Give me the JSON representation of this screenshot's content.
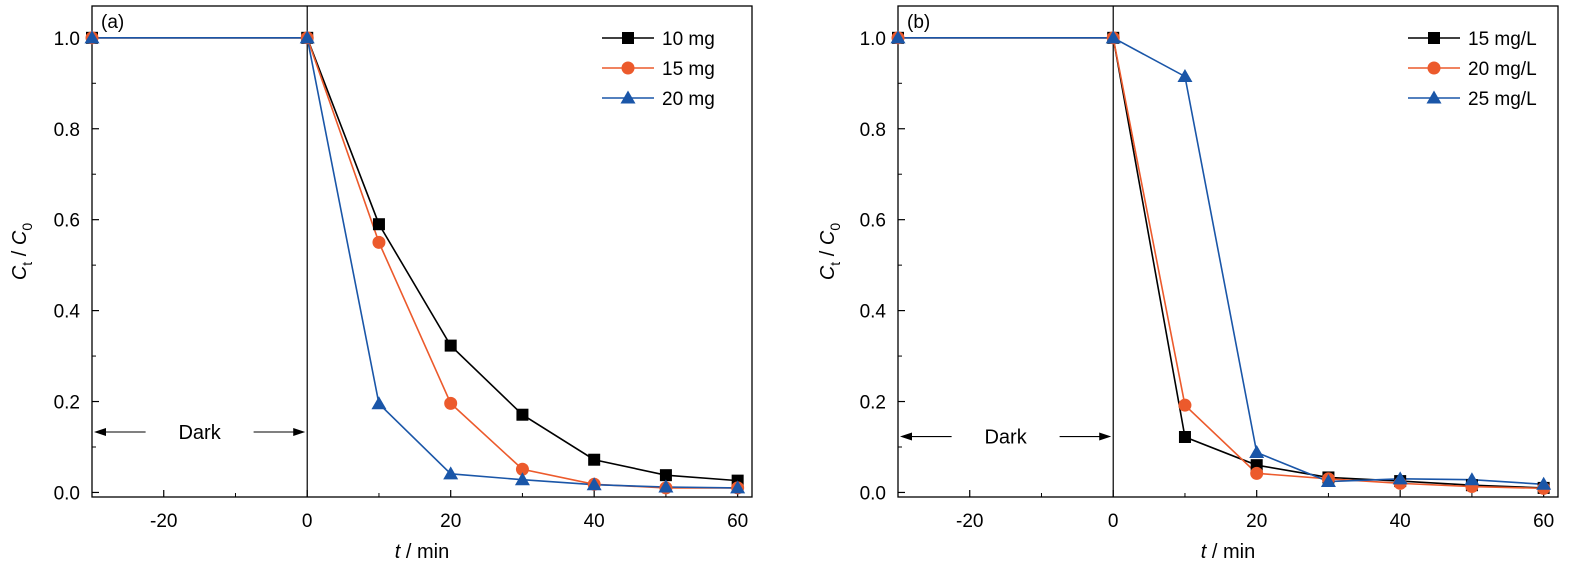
{
  "chart_data": [
    {
      "type": "line",
      "panel_label": "(a)",
      "xlabel": {
        "var": "t",
        "unit": " / min"
      },
      "ylabel": {
        "main": "C",
        "num_sub": "t",
        "sep": " / ",
        "den": "C",
        "den_sub": "0"
      },
      "xlim": [
        -30,
        62
      ],
      "ylim": [
        -0.01,
        1.07
      ],
      "xticks": [
        -20,
        0,
        20,
        40,
        60
      ],
      "xtick_labels": [
        "-20",
        "0",
        "20",
        "40",
        "60"
      ],
      "yticks": [
        0.0,
        0.2,
        0.4,
        0.6,
        0.8,
        1.0
      ],
      "ytick_labels": [
        "0.0",
        "0.2",
        "0.4",
        "0.6",
        "0.8",
        "1.0"
      ],
      "vline_x": 0,
      "dark_annotation": {
        "text": "Dark",
        "x_from": -30,
        "x_to": 0,
        "y": 0.133
      },
      "legend_position": "top-right",
      "x": [
        -30,
        0,
        10,
        20,
        30,
        40,
        50,
        60
      ],
      "series": [
        {
          "name": "10 mg",
          "color": "#000000",
          "marker": "square",
          "values": [
            1.0,
            1.0,
            0.59,
            0.323,
            0.171,
            0.072,
            0.038,
            0.026
          ]
        },
        {
          "name": "15 mg",
          "color": "#ec5a2c",
          "marker": "circle",
          "values": [
            1.0,
            1.0,
            0.55,
            0.196,
            0.051,
            0.018,
            0.01,
            0.01
          ]
        },
        {
          "name": "20 mg",
          "color": "#1a56a8",
          "marker": "triangle",
          "values": [
            1.0,
            1.0,
            0.195,
            0.041,
            0.028,
            0.017,
            0.012,
            0.01
          ]
        }
      ]
    },
    {
      "type": "line",
      "panel_label": "(b)",
      "xlabel": {
        "var": "t",
        "unit": " / min"
      },
      "ylabel": {
        "main": "C",
        "num_sub": "t",
        "sep": " / ",
        "den": "C",
        "den_sub": "0"
      },
      "xlim": [
        -30,
        62
      ],
      "ylim": [
        -0.01,
        1.07
      ],
      "xticks": [
        -20,
        0,
        20,
        40,
        60
      ],
      "xtick_labels": [
        "-20",
        "0",
        "20",
        "40",
        "60"
      ],
      "yticks": [
        0.0,
        0.2,
        0.4,
        0.6,
        0.8,
        1.0
      ],
      "ytick_labels": [
        "0.0",
        "0.2",
        "0.4",
        "0.6",
        "0.8",
        "1.0"
      ],
      "vline_x": 0,
      "dark_annotation": {
        "text": "Dark",
        "x_from": -30,
        "x_to": 0,
        "y": 0.123
      },
      "legend_position": "top-right",
      "x": [
        -30,
        0,
        10,
        20,
        30,
        40,
        50,
        60
      ],
      "series": [
        {
          "name": "15 mg/L",
          "color": "#000000",
          "marker": "square",
          "values": [
            1.0,
            1.0,
            0.122,
            0.06,
            0.033,
            0.025,
            0.016,
            0.01
          ]
        },
        {
          "name": "20 mg/L",
          "color": "#ec5a2c",
          "marker": "circle",
          "values": [
            1.0,
            1.0,
            0.192,
            0.042,
            0.03,
            0.02,
            0.013,
            0.009
          ]
        },
        {
          "name": "25 mg/L",
          "color": "#1a56a8",
          "marker": "triangle",
          "values": [
            1.0,
            1.0,
            0.915,
            0.088,
            0.024,
            0.03,
            0.028,
            0.018
          ]
        }
      ]
    }
  ]
}
